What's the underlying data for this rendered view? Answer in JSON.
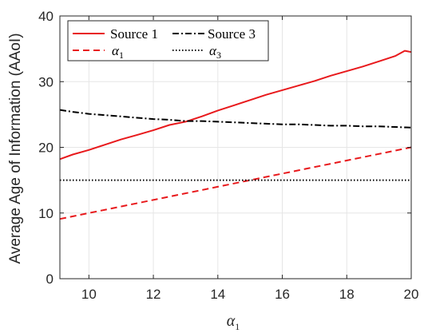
{
  "colors": {
    "background": "#ffffff",
    "axis": "#262626",
    "grid": "#e6e6e6",
    "red": "#e8191c",
    "black": "#000000"
  },
  "chart_data": {
    "type": "line",
    "title": "",
    "xlabel": "α",
    "xlabel_subscript": "1",
    "ylabel": "Average Age of Information (AAoI)",
    "xlim": [
      9.1,
      20.0
    ],
    "ylim": [
      0,
      40
    ],
    "xticks": [
      10,
      12,
      14,
      16,
      18,
      20
    ],
    "yticks": [
      0,
      10,
      20,
      30,
      40
    ],
    "grid": true,
    "legend_position": "top",
    "series": [
      {
        "name": "Source 1",
        "color": "#e8191c",
        "style": "solid",
        "x": [
          9.1,
          9.5,
          10.0,
          10.5,
          11.0,
          11.5,
          12.0,
          12.5,
          13.0,
          13.5,
          14.0,
          14.5,
          15.0,
          15.5,
          16.0,
          16.5,
          17.0,
          17.5,
          18.0,
          18.5,
          19.0,
          19.5,
          19.8,
          20.0
        ],
        "values": [
          18.2,
          18.9,
          19.6,
          20.4,
          21.2,
          21.9,
          22.6,
          23.4,
          23.9,
          24.7,
          25.6,
          26.4,
          27.2,
          28.0,
          28.7,
          29.4,
          30.1,
          30.9,
          31.6,
          32.3,
          33.1,
          33.9,
          34.7,
          34.5
        ]
      },
      {
        "name": "Source 3",
        "color": "#000000",
        "style": "dashdot",
        "x": [
          9.1,
          9.5,
          10.0,
          10.5,
          11.0,
          11.5,
          12.0,
          12.5,
          13.0,
          13.5,
          14.0,
          14.5,
          15.0,
          15.5,
          16.0,
          16.5,
          17.0,
          17.5,
          18.0,
          18.5,
          19.0,
          19.5,
          20.0
        ],
        "values": [
          25.7,
          25.4,
          25.1,
          24.9,
          24.7,
          24.5,
          24.3,
          24.2,
          24.0,
          24.0,
          23.9,
          23.8,
          23.7,
          23.6,
          23.5,
          23.5,
          23.4,
          23.3,
          23.3,
          23.2,
          23.2,
          23.1,
          23.0
        ]
      },
      {
        "name": "α",
        "name_subscript": "1",
        "color": "#e8191c",
        "style": "dashed",
        "x": [
          9.1,
          20.0
        ],
        "values": [
          9.1,
          20.0
        ]
      },
      {
        "name": "α",
        "name_subscript": "3",
        "color": "#000000",
        "style": "dotted",
        "x": [
          9.1,
          20.0
        ],
        "values": [
          15.0,
          15.0
        ]
      }
    ]
  }
}
